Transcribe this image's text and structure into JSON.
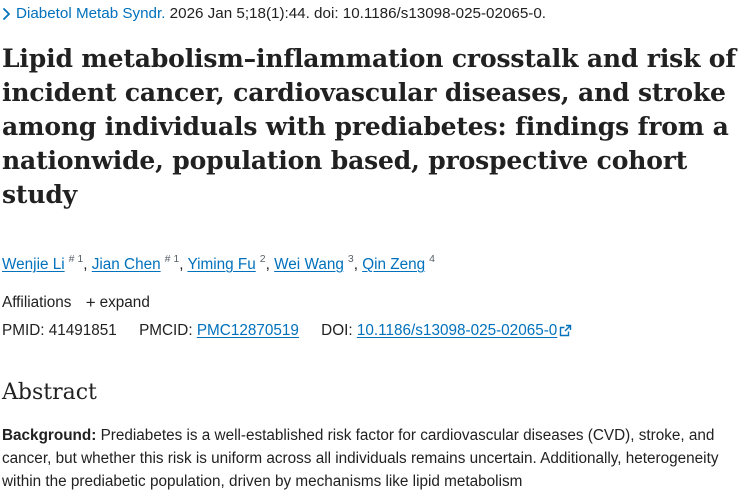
{
  "citation": {
    "journal": "Diabetol Metab Syndr.",
    "details": "2026 Jan 5;18(1):44. doi: 10.1186/s13098-025-02065-0."
  },
  "title": "Lipid metabolism–inflammation crosstalk and risk of incident cancer, cardiovascular diseases, and stroke among individuals with prediabetes: findings from a nationwide, population based, prospective cohort study",
  "authors": [
    {
      "name": "Wenjie Li",
      "sup": "# 1"
    },
    {
      "name": "Jian Chen",
      "sup": "# 1"
    },
    {
      "name": "Yiming Fu",
      "sup": "2"
    },
    {
      "name": "Wei Wang",
      "sup": "3"
    },
    {
      "name": "Qin Zeng",
      "sup": "4"
    }
  ],
  "affiliations": {
    "label": "Affiliations",
    "expand_label": "expand"
  },
  "identifiers": {
    "pmid_label": "PMID:",
    "pmid": "41491851",
    "pmcid_label": "PMCID:",
    "pmcid": "PMC12870519",
    "doi_label": "DOI:",
    "doi": "10.1186/s13098-025-02065-0"
  },
  "abstract": {
    "heading": "Abstract",
    "background_label": "Background:",
    "background_text": "Prediabetes is a well-established risk factor for cardiovascular diseases (CVD), stroke, and cancer, but whether this risk is uniform across all individuals remains uncertain. Additionally, heterogeneity within the prediabetic population, driven by mechanisms like lipid metabolism"
  },
  "colors": {
    "link": "#0071bc",
    "text": "#212121",
    "muted": "#5b616b"
  }
}
